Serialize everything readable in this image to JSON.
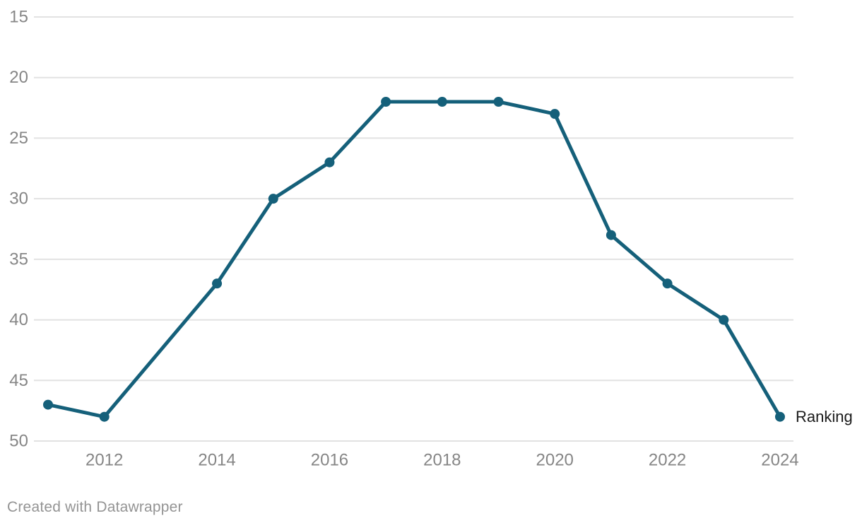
{
  "chart_data": {
    "type": "line",
    "x": [
      2011,
      2012,
      2013,
      2014,
      2015,
      2016,
      2017,
      2018,
      2019,
      2020,
      2021,
      2022,
      2023,
      2024
    ],
    "series": [
      {
        "name": "Ranking",
        "values": [
          47,
          48,
          null,
          37,
          30,
          27,
          22,
          22,
          22,
          23,
          33,
          37,
          40,
          48
        ]
      }
    ],
    "title": "",
    "xlabel": "",
    "ylabel": "",
    "y_axis": {
      "ticks": [
        15,
        20,
        25,
        30,
        35,
        40,
        45,
        50
      ],
      "min": 15,
      "max": 50,
      "inverted": true
    },
    "x_axis": {
      "ticks": [
        2012,
        2014,
        2016,
        2018,
        2020,
        2022,
        2024
      ],
      "min": 2011,
      "max": 2024
    },
    "grid": "horizontal",
    "legend_position": "line-end-label",
    "colors": {
      "line": "#15607a",
      "grid": "#e2e2e2",
      "tick_label": "#868686",
      "series_label": "#1a1a1a"
    }
  },
  "footer": {
    "credit": "Created with Datawrapper"
  }
}
